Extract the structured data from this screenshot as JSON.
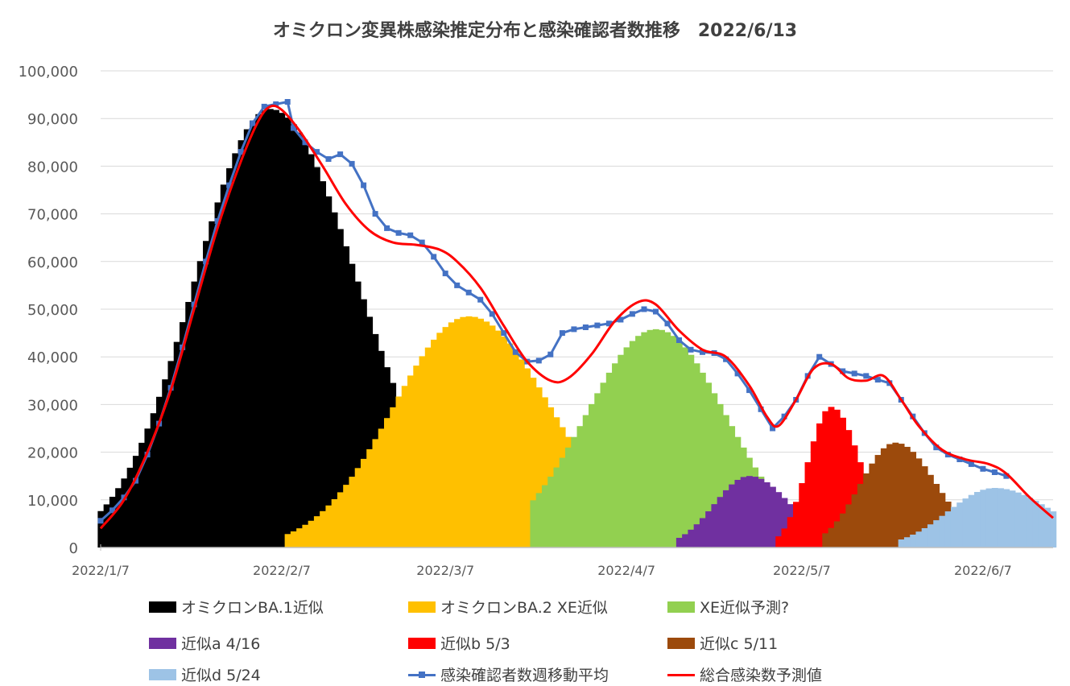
{
  "chart_data": {
    "type": "area",
    "title": "オミクロン変異株感染推定分布と感染確認者数推移　2022/6/13",
    "xlabel": "",
    "ylabel": "",
    "ylim": [
      0,
      100000
    ],
    "yticks": [
      "0",
      "10,000",
      "20,000",
      "30,000",
      "40,000",
      "50,000",
      "60,000",
      "70,000",
      "80,000",
      "90,000",
      "100,000"
    ],
    "xlim": [
      "2022-01-07",
      "2022-06-19"
    ],
    "xticks": [
      {
        "date": "2022-01-07",
        "label": "2022/1/7"
      },
      {
        "date": "2022-02-07",
        "label": "2022/2/7"
      },
      {
        "date": "2022-03-07",
        "label": "2022/3/7"
      },
      {
        "date": "2022-04-07",
        "label": "2022/4/7"
      },
      {
        "date": "2022-05-07",
        "label": "2022/5/7"
      },
      {
        "date": "2022-06-07",
        "label": "2022/6/7"
      }
    ],
    "grid": true,
    "legend_position": "bottom",
    "distributions": [
      {
        "name": "オミクロンBA.1近似",
        "color": "#000000",
        "peak_date": "2022-02-05",
        "peak": 92000,
        "sd_left": 13,
        "sd_right": 15,
        "start": "2022-01-07",
        "end": "2022-02-27"
      },
      {
        "name": "オミクロンBA.2 XE近似",
        "color": "#FFC000",
        "peak_date": "2022-03-11",
        "peak": 48500,
        "sd_left": 13,
        "sd_right": 14,
        "start": "2022-02-08",
        "end": "2022-04-02"
      },
      {
        "name": "XE近似予測?",
        "color": "#92D050",
        "peak_date": "2022-04-12",
        "peak": 45800,
        "sd_left": 12,
        "sd_right": 12,
        "start": "2022-03-22",
        "end": "2022-05-06"
      },
      {
        "name": "近似a 4/16",
        "color": "#7030A0",
        "peak_date": "2022-04-28",
        "peak": 15000,
        "sd_left": 6,
        "sd_right": 7,
        "start": "2022-04-16",
        "end": "2022-05-07"
      },
      {
        "name": "近似b 5/3",
        "color": "#FF0000",
        "peak_date": "2022-05-12",
        "peak": 29500,
        "sd_left": 4,
        "sd_right": 5,
        "start": "2022-05-03",
        "end": "2022-05-18"
      },
      {
        "name": "近似c 5/11",
        "color": "#9C4A0C",
        "peak_date": "2022-05-23",
        "peak": 22000,
        "sd_left": 6,
        "sd_right": 7,
        "start": "2022-05-11",
        "end": "2022-06-03"
      },
      {
        "name": "近似d 5/24",
        "color": "#9DC3E6",
        "peak_date": "2022-06-09",
        "peak": 12500,
        "sd_left": 8,
        "sd_right": 10,
        "start": "2022-05-24",
        "end": "2022-06-19"
      }
    ],
    "series": [
      {
        "name": "感染確認者数週移動平均",
        "color": "#4472C4",
        "marker": "square",
        "points": [
          [
            "2022-01-07",
            5600
          ],
          [
            "2022-01-09",
            7800
          ],
          [
            "2022-01-11",
            10500
          ],
          [
            "2022-01-13",
            14000
          ],
          [
            "2022-01-15",
            19500
          ],
          [
            "2022-01-17",
            26000
          ],
          [
            "2022-01-19",
            33500
          ],
          [
            "2022-01-21",
            42000
          ],
          [
            "2022-01-23",
            51000
          ],
          [
            "2022-01-25",
            60000
          ],
          [
            "2022-01-27",
            68500
          ],
          [
            "2022-01-29",
            76000
          ],
          [
            "2022-01-31",
            83000
          ],
          [
            "2022-02-02",
            89000
          ],
          [
            "2022-02-04",
            92500
          ],
          [
            "2022-02-06",
            93000
          ],
          [
            "2022-02-08",
            93500
          ],
          [
            "2022-02-09",
            88000
          ],
          [
            "2022-02-11",
            85000
          ],
          [
            "2022-02-13",
            83000
          ],
          [
            "2022-02-15",
            81500
          ],
          [
            "2022-02-17",
            82500
          ],
          [
            "2022-02-19",
            80500
          ],
          [
            "2022-02-21",
            76000
          ],
          [
            "2022-02-23",
            70000
          ],
          [
            "2022-02-25",
            67000
          ],
          [
            "2022-02-27",
            66000
          ],
          [
            "2022-03-01",
            65500
          ],
          [
            "2022-03-03",
            64000
          ],
          [
            "2022-03-05",
            61000
          ],
          [
            "2022-03-07",
            57500
          ],
          [
            "2022-03-09",
            55000
          ],
          [
            "2022-03-11",
            53500
          ],
          [
            "2022-03-13",
            52000
          ],
          [
            "2022-03-15",
            49000
          ],
          [
            "2022-03-17",
            45000
          ],
          [
            "2022-03-19",
            41000
          ],
          [
            "2022-03-21",
            39000
          ],
          [
            "2022-03-23",
            39200
          ],
          [
            "2022-03-25",
            40500
          ],
          [
            "2022-03-27",
            45000
          ],
          [
            "2022-03-29",
            45800
          ],
          [
            "2022-03-31",
            46200
          ],
          [
            "2022-04-02",
            46600
          ],
          [
            "2022-04-04",
            47000
          ],
          [
            "2022-04-06",
            47800
          ],
          [
            "2022-04-08",
            49000
          ],
          [
            "2022-04-10",
            50000
          ],
          [
            "2022-04-12",
            49500
          ],
          [
            "2022-04-14",
            47000
          ],
          [
            "2022-04-16",
            43500
          ],
          [
            "2022-04-18",
            41500
          ],
          [
            "2022-04-20",
            41000
          ],
          [
            "2022-04-22",
            40800
          ],
          [
            "2022-04-24",
            39500
          ],
          [
            "2022-04-26",
            36500
          ],
          [
            "2022-04-28",
            33000
          ],
          [
            "2022-04-30",
            29000
          ],
          [
            "2022-05-02",
            25000
          ],
          [
            "2022-05-04",
            27500
          ],
          [
            "2022-05-06",
            31000
          ],
          [
            "2022-05-08",
            36000
          ],
          [
            "2022-05-10",
            40000
          ],
          [
            "2022-05-12",
            38500
          ],
          [
            "2022-05-14",
            37000
          ],
          [
            "2022-05-16",
            36500
          ],
          [
            "2022-05-18",
            36000
          ],
          [
            "2022-05-20",
            35200
          ],
          [
            "2022-05-22",
            34500
          ],
          [
            "2022-05-24",
            31000
          ],
          [
            "2022-05-26",
            27500
          ],
          [
            "2022-05-28",
            24000
          ],
          [
            "2022-05-30",
            21000
          ],
          [
            "2022-06-01",
            19500
          ],
          [
            "2022-06-03",
            18500
          ],
          [
            "2022-06-05",
            17500
          ],
          [
            "2022-06-07",
            16500
          ],
          [
            "2022-06-09",
            15800
          ],
          [
            "2022-06-11",
            15000
          ]
        ]
      },
      {
        "name": "総合感染数予測値",
        "color": "#FF0000",
        "marker": "none",
        "points": [
          [
            "2022-01-07",
            4000
          ],
          [
            "2022-01-11",
            10000
          ],
          [
            "2022-01-15",
            20000
          ],
          [
            "2022-01-19",
            33000
          ],
          [
            "2022-01-23",
            50000
          ],
          [
            "2022-01-27",
            67000
          ],
          [
            "2022-01-31",
            81000
          ],
          [
            "2022-02-03",
            89500
          ],
          [
            "2022-02-05",
            92500
          ],
          [
            "2022-02-07",
            91800
          ],
          [
            "2022-02-10",
            87500
          ],
          [
            "2022-02-14",
            80000
          ],
          [
            "2022-02-18",
            72000
          ],
          [
            "2022-02-22",
            66500
          ],
          [
            "2022-02-26",
            64000
          ],
          [
            "2022-03-02",
            63500
          ],
          [
            "2022-03-06",
            62500
          ],
          [
            "2022-03-09",
            60000
          ],
          [
            "2022-03-13",
            54500
          ],
          [
            "2022-03-17",
            46500
          ],
          [
            "2022-03-21",
            39000
          ],
          [
            "2022-03-25",
            35000
          ],
          [
            "2022-03-28",
            35500
          ],
          [
            "2022-04-01",
            40500
          ],
          [
            "2022-04-05",
            47500
          ],
          [
            "2022-04-09",
            51500
          ],
          [
            "2022-04-12",
            51000
          ],
          [
            "2022-04-16",
            45500
          ],
          [
            "2022-04-20",
            41500
          ],
          [
            "2022-04-24",
            40000
          ],
          [
            "2022-04-28",
            34000
          ],
          [
            "2022-05-01",
            27500
          ],
          [
            "2022-05-03",
            25500
          ],
          [
            "2022-05-06",
            31000
          ],
          [
            "2022-05-09",
            37500
          ],
          [
            "2022-05-12",
            38500
          ],
          [
            "2022-05-15",
            35500
          ],
          [
            "2022-05-18",
            35000
          ],
          [
            "2022-05-21",
            36000
          ],
          [
            "2022-05-24",
            31000
          ],
          [
            "2022-05-27",
            25500
          ],
          [
            "2022-05-31",
            20500
          ],
          [
            "2022-06-04",
            18500
          ],
          [
            "2022-06-08",
            17500
          ],
          [
            "2022-06-11",
            15500
          ],
          [
            "2022-06-15",
            10500
          ],
          [
            "2022-06-19",
            6200
          ]
        ]
      }
    ]
  },
  "legend": [
    {
      "label": "オミクロンBA.1近似",
      "kind": "swatch",
      "color": "#000000"
    },
    {
      "label": "オミクロンBA.2 XE近似",
      "kind": "swatch",
      "color": "#FFC000"
    },
    {
      "label": "XE近似予測?",
      "kind": "swatch",
      "color": "#92D050"
    },
    {
      "label": "近似a 4/16",
      "kind": "swatch",
      "color": "#7030A0"
    },
    {
      "label": "近似b 5/3",
      "kind": "swatch",
      "color": "#FF0000"
    },
    {
      "label": "近似c 5/11",
      "kind": "swatch",
      "color": "#9C4A0C"
    },
    {
      "label": "近似d 5/24",
      "kind": "swatch",
      "color": "#9DC3E6"
    },
    {
      "label": "感染確認者数週移動平均",
      "kind": "line-marker",
      "color": "#4472C4"
    },
    {
      "label": "総合感染数予測値",
      "kind": "line",
      "color": "#FF0000"
    }
  ]
}
